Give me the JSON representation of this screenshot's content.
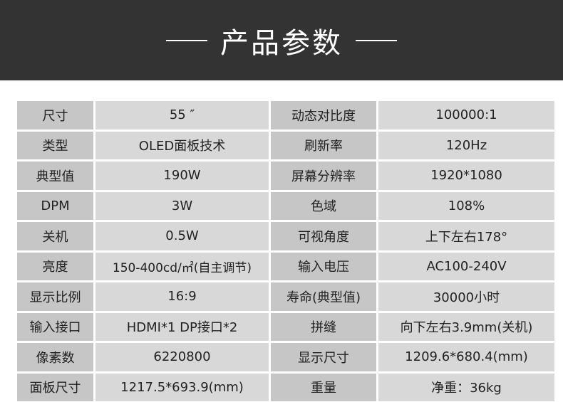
{
  "header": {
    "title": "产品参数"
  },
  "rows": [
    [
      "尺寸",
      "55 ″",
      "动态对比度",
      "100000:1"
    ],
    [
      "类型",
      "OLED面板技术",
      "刷新率",
      "120Hz"
    ],
    [
      "典型值",
      "190W",
      "屏幕分辨率",
      "1920*1080"
    ],
    [
      "DPM",
      "3W",
      "色域",
      "108%"
    ],
    [
      "关机",
      "0.5W",
      "可视角度",
      "上下左右178°"
    ],
    [
      "亮度",
      "150-400cd/㎡(自主调节)",
      "输入电压",
      "AC100-240V"
    ],
    [
      "显示比例",
      "16:9",
      "寿命(典型值)",
      "30000小时"
    ],
    [
      "输入接口",
      "HDMI*1  DP接口*2",
      "拼缝",
      "向下左右3.9mm(关机)"
    ],
    [
      "像素数",
      "6220800",
      "显示尺寸",
      "1209.6*680.4(mm)"
    ],
    [
      "面板尺寸",
      "1217.5*693.9(mm)",
      "重量",
      "净重：36kg"
    ]
  ]
}
